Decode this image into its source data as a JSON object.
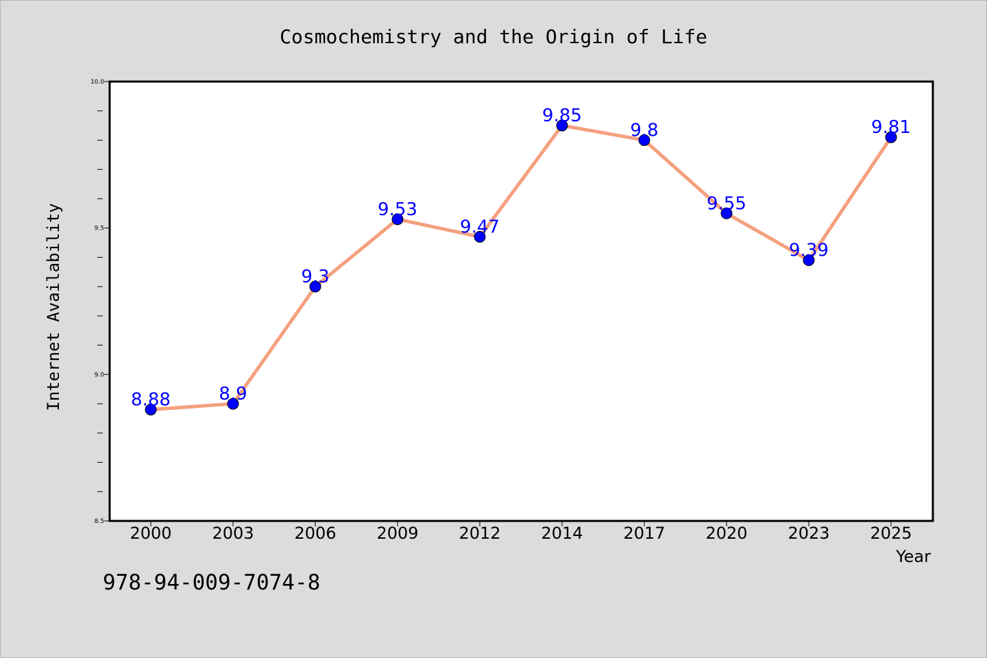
{
  "chart_data": {
    "type": "line",
    "title": "Cosmochemistry and the Origin of Life",
    "xlabel": "Year",
    "ylabel": "Internet Availability",
    "categories": [
      "2000",
      "2003",
      "2006",
      "2009",
      "2012",
      "2014",
      "2017",
      "2020",
      "2023",
      "2025"
    ],
    "series": [
      {
        "values": [
          8.88,
          8.9,
          9.3,
          9.53,
          9.47,
          9.85,
          9.8,
          9.55,
          9.39,
          9.81
        ],
        "data_labels": [
          "8.88",
          "8.9",
          "9.3",
          "9.53",
          "9.47",
          "9.85",
          "9.8",
          "9.55",
          "9.39",
          "9.81"
        ]
      }
    ],
    "ylim": [
      8.5,
      10.0
    ],
    "yticks": [
      "8.5",
      "9.0",
      "9.5",
      "10.0"
    ],
    "grid": false,
    "colors": {
      "line": "#f4a07e",
      "marker": "#0000ff",
      "label": "#0000ff"
    }
  },
  "footer": {
    "isbn": "978-94-009-7074-8"
  }
}
